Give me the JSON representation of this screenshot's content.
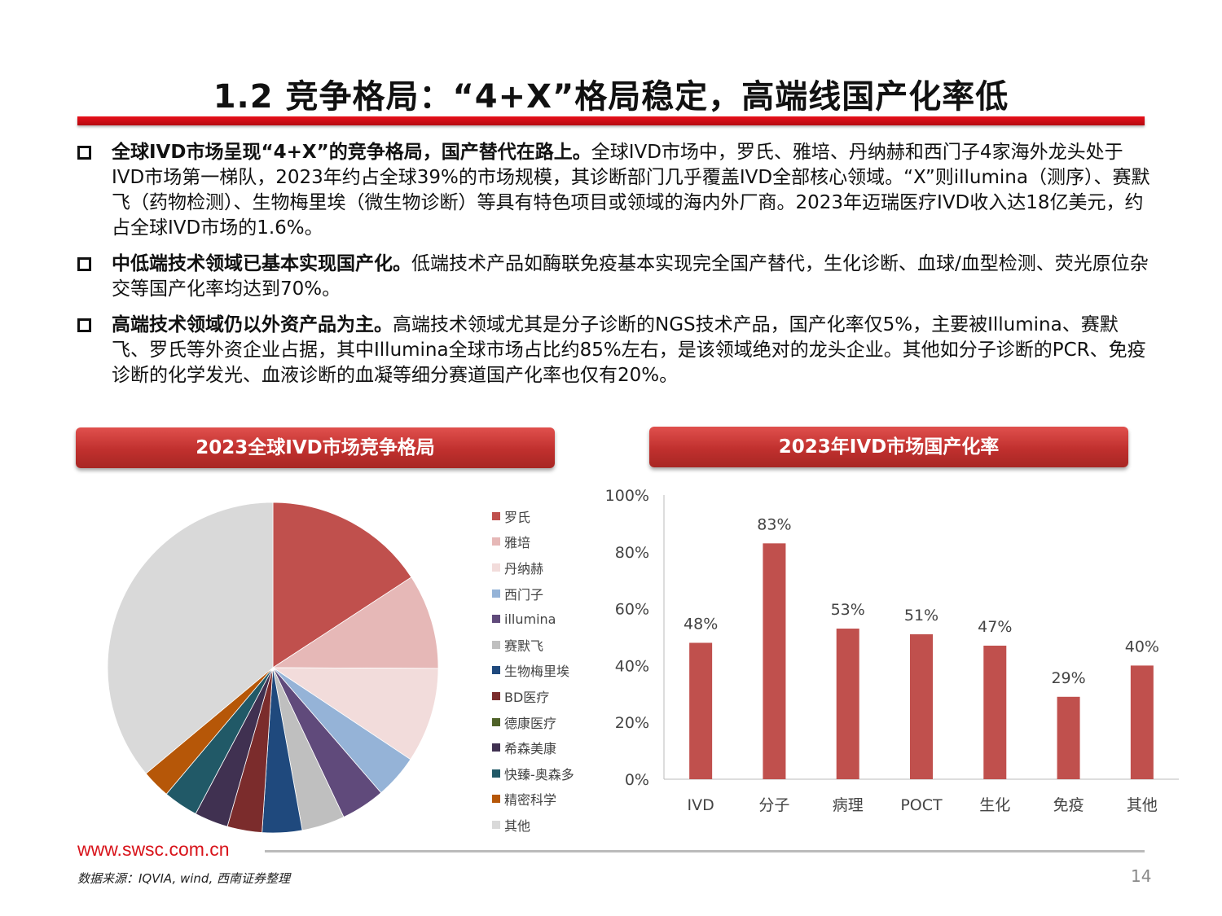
{
  "title": "1.2 竞争格局：“4+X”格局稳定，高端线国产化率低",
  "bullets": [
    {
      "lead": "全球IVD市场呈现“4+X”的竞争格局，国产替代在路上。",
      "text": "全球IVD市场中，罗氏、雅培、丹纳赫和西门子4家海外龙头处于IVD市场第一梯队，2023年约占全球39%的市场规模，其诊断部门几乎覆盖IVD全部核心领域。“X”则illumina（测序）、赛默飞（药物检测）、生物梅里埃（微生物诊断）等具有特色项目或领域的海内外厂商。2023年迈瑞医疗IVD收入达18亿美元，约占全球IVD市场的1.6%。"
    },
    {
      "lead": "中低端技术领域已基本实现国产化。",
      "text": "低端技术产品如酶联免疫基本实现完全国产替代，生化诊断、血球/血型检测、荧光原位杂交等国产化率均达到70%。"
    },
    {
      "lead": "高端技术领域仍以外资产品为主。",
      "text": "高端技术领域尤其是分子诊断的NGS技术产品，国产化率仅5%，主要被Illumina、赛默飞、罗氏等外资企业占据，其中Illumina全球市场占比约85%左右，是该领域绝对的龙头企业。其他如分子诊断的PCR、免疫诊断的化学发光、血液诊断的血凝等细分赛道国产化率也仅有20%。"
    }
  ],
  "chart_data": [
    {
      "type": "pie",
      "title": "2023全球IVD市场竞争格局",
      "legend_position": "right",
      "labels": [
        "罗氏",
        "雅培",
        "丹纳赫",
        "西门子",
        "illumina",
        "赛默飞",
        "生物梅里埃",
        "BD医疗",
        "德康医疗",
        "希森美康",
        "快臻-奥森多",
        "精密科学",
        "其他"
      ],
      "values": [
        15.8,
        9.3,
        9.3,
        4.3,
        4.3,
        4.2,
        3.9,
        3.4,
        0,
        3.3,
        3.4,
        2.8,
        36.1
      ],
      "colors": [
        "#c0504d",
        "#e6b8b7",
        "#f2dcdb",
        "#95b3d7",
        "#604a7b",
        "#bfbfbf",
        "#1f497d",
        "#7b2c2c",
        "#4f6228",
        "#403151",
        "#215967",
        "#b65708",
        "#d9d9d9"
      ]
    },
    {
      "type": "bar",
      "title": "2023年IVD市场国产化率",
      "categories": [
        "IVD",
        "分子",
        "病理",
        "POCT",
        "生化",
        "免疫",
        "其他"
      ],
      "values": [
        48,
        83,
        53,
        51,
        47,
        29,
        40
      ],
      "data_labels": [
        "48%",
        "83%",
        "53%",
        "51%",
        "47%",
        "29%",
        "40%"
      ],
      "ylim": [
        0,
        100
      ],
      "yticks": [
        "0%",
        "20%",
        "40%",
        "60%",
        "80%",
        "100%"
      ],
      "color": "#c0504d",
      "grid": false
    }
  ],
  "footer": {
    "site": "www.swsc.com.cn",
    "source": "数据来源：IQVIA, wind, 西南证券整理",
    "page": "14"
  }
}
